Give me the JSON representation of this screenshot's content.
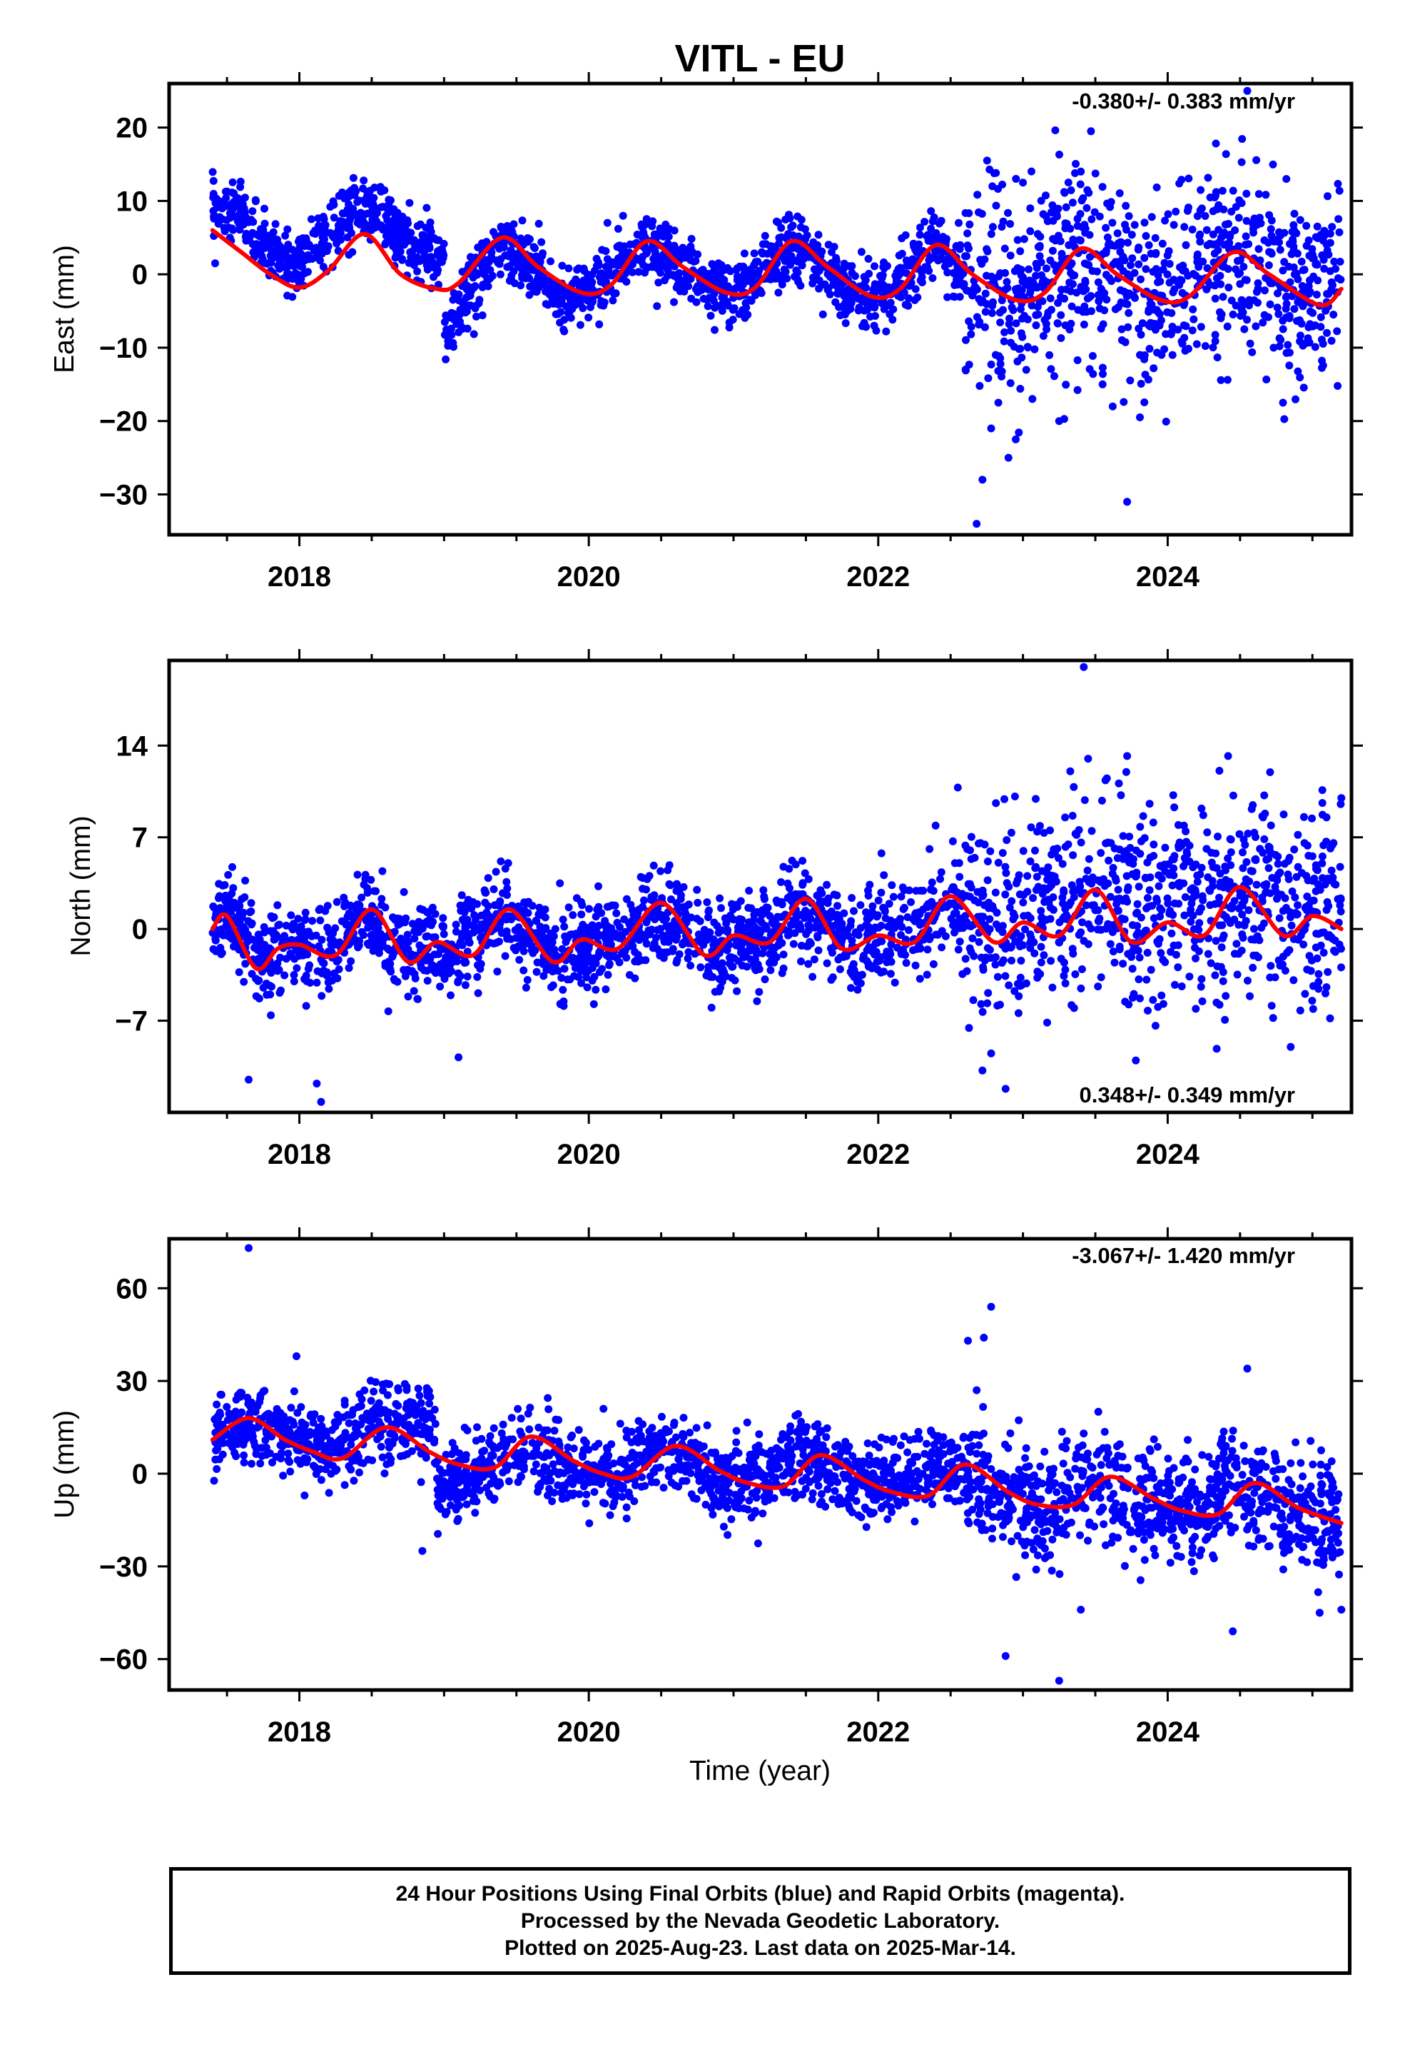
{
  "title": "VITL - EU",
  "xlabel": "Time (year)",
  "footer": {
    "line1": "24 Hour Positions Using Final Orbits (blue) and Rapid Orbits (magenta).",
    "line2": "Processed by the Nevada Geodetic Laboratory.",
    "line3": "Plotted on 2025-Aug-23. Last data on 2025-Mar-14."
  },
  "colors": {
    "points": "#0000ff",
    "fit": "#ff0000",
    "frame": "#000000"
  },
  "chart_data": [
    {
      "type": "scatter",
      "component": "east",
      "ylabel": "East (mm)",
      "rate_text": "-0.380+/- 0.383 mm/yr",
      "rate_position": "top-right",
      "xlim": [
        2017.1,
        2025.27
      ],
      "ylim": [
        -35.5,
        26
      ],
      "yticks": [
        20,
        10,
        0,
        -10,
        -20,
        -30
      ],
      "ytick_labels": [
        "20",
        "10",
        "0",
        "−10",
        "−20",
        "−30"
      ],
      "xticks": [
        2018,
        2020,
        2022,
        2024
      ],
      "xtick_labels": [
        "2018",
        "2020",
        "2022",
        "2024"
      ],
      "x_minor_step": 0.5,
      "grid": false,
      "segments": [
        {
          "x": [
            2017.4,
            2017.6,
            2017.8,
            2018.0,
            2018.2,
            2018.4,
            2018.6,
            2018.8,
            2019.0
          ],
          "y": [
            8.5,
            8.0,
            2.5,
            1.5,
            5.5,
            9.5,
            7.0,
            3.5,
            3.0
          ]
        },
        {
          "x": [
            2019.0,
            2019.2,
            2019.4,
            2019.6,
            2019.8,
            2020.0,
            2020.2,
            2020.4,
            2020.6,
            2020.8,
            2021.0,
            2021.2,
            2021.4,
            2021.6,
            2021.8,
            2022.0,
            2022.2,
            2022.4,
            2022.6,
            2022.8,
            2023.0,
            2023.2,
            2023.4,
            2023.6,
            2023.8,
            2024.0,
            2024.2,
            2024.4,
            2024.6,
            2024.8,
            2025.0,
            2025.2
          ],
          "y": [
            -8.0,
            -1.0,
            4.0,
            1.5,
            -3.5,
            -2.5,
            1.5,
            4.0,
            1.5,
            -2.0,
            -3.0,
            0.5,
            3.5,
            1.5,
            -2.5,
            -3.0,
            0.0,
            4.0,
            -1.0,
            -2.5,
            -2.5,
            1.0,
            3.0,
            0.5,
            -4.0,
            -3.0,
            0.5,
            3.0,
            0.5,
            -2.5,
            -2.5,
            -1.5
          ]
        }
      ],
      "noise_early": [
        2.0,
        2.2
      ],
      "noise_late": [
        2.5,
        6.5
      ],
      "late_start": 2022.6,
      "outliers": {
        "x": [
          2022.68,
          2022.72,
          2022.78,
          2022.83,
          2022.9,
          2023.0,
          2023.25,
          2023.4,
          2023.47,
          2023.55,
          2023.62,
          2023.72,
          2024.55,
          2022.95,
          2023.05,
          2024.82
        ],
        "y": [
          -34.0,
          -28.0,
          -21.0,
          -17.5,
          -25.0,
          12.5,
          -20.0,
          14.0,
          19.5,
          -15.0,
          -18.0,
          -31.0,
          25.0,
          -22.5,
          9.0,
          13.0
        ]
      },
      "fit": {
        "x": [
          2017.4,
          2017.6,
          2017.8,
          2018.0,
          2018.2,
          2018.45,
          2018.7,
          2018.95,
          2019.1,
          2019.4,
          2019.65,
          2019.95,
          2020.15,
          2020.4,
          2020.65,
          2020.95,
          2021.15,
          2021.4,
          2021.65,
          2021.95,
          2022.15,
          2022.4,
          2022.65,
          2022.95,
          2023.15,
          2023.4,
          2023.65,
          2023.95,
          2024.15,
          2024.45,
          2024.7,
          2025.05,
          2025.2
        ],
        "y": [
          6.0,
          3.0,
          0.0,
          -1.8,
          0.5,
          5.5,
          0.0,
          -2.0,
          -1.2,
          5.0,
          1.0,
          -2.5,
          -1.5,
          4.5,
          1.0,
          -2.5,
          -1.8,
          4.5,
          1.0,
          -3.0,
          -2.0,
          4.0,
          0.0,
          -3.5,
          -2.5,
          3.5,
          0.0,
          -3.5,
          -3.0,
          3.0,
          0.0,
          -4.2,
          -2.0
        ]
      }
    },
    {
      "type": "scatter",
      "component": "north",
      "ylabel": "North (mm)",
      "rate_text": "0.348+/- 0.349 mm/yr",
      "rate_position": "bottom-right",
      "xlim": [
        2017.1,
        2025.27
      ],
      "ylim": [
        -14,
        20.5
      ],
      "yticks": [
        14,
        7,
        0,
        -7
      ],
      "ytick_labels": [
        "14",
        "7",
        "0",
        "−7"
      ],
      "xticks": [
        2018,
        2020,
        2022,
        2024
      ],
      "xtick_labels": [
        "2018",
        "2020",
        "2022",
        "2024"
      ],
      "x_minor_step": 0.5,
      "grid": false,
      "segments": [
        {
          "x": [
            2017.4,
            2017.55,
            2017.75,
            2017.95,
            2018.2,
            2018.45,
            2018.65,
            2018.85,
            2019.05,
            2019.25,
            2019.45,
            2019.65,
            2019.85,
            2020.05,
            2020.25,
            2020.45,
            2020.65,
            2020.85,
            2021.05,
            2021.25,
            2021.45,
            2021.65,
            2021.85,
            2022.05,
            2022.25,
            2022.5,
            2022.7,
            2022.9,
            2023.1,
            2023.3,
            2023.5,
            2023.7,
            2023.9,
            2024.1,
            2024.3,
            2024.5,
            2024.7,
            2024.9,
            2025.1,
            2025.2
          ],
          "y": [
            0.5,
            1.0,
            -2.5,
            -1.5,
            -2.0,
            1.5,
            -1.5,
            -1.0,
            -2.0,
            0.0,
            1.5,
            -1.0,
            -2.5,
            -1.0,
            -1.5,
            1.5,
            -0.5,
            -2.0,
            -0.5,
            -1.0,
            2.0,
            0.0,
            -2.0,
            0.0,
            0.0,
            2.5,
            0.5,
            0.0,
            1.5,
            2.0,
            3.0,
            1.5,
            1.5,
            2.5,
            2.5,
            3.0,
            2.0,
            2.0,
            2.0,
            1.5
          ]
        }
      ],
      "noise_early": [
        1.7,
        1.7
      ],
      "noise_late": [
        1.7,
        3.8
      ],
      "late_start": 2022.6,
      "outliers": {
        "x": [
          2017.65,
          2018.12,
          2018.15,
          2019.1,
          2022.72,
          2022.78,
          2022.88,
          2023.42,
          2023.72,
          2023.45,
          2024.85,
          2025.2,
          2023.58,
          2022.55
        ],
        "y": [
          -11.5,
          -11.8,
          -13.2,
          -9.8,
          -10.8,
          -9.5,
          -12.2,
          20.0,
          13.2,
          13.0,
          -9.0,
          10.0,
          11.5,
          10.8
        ]
      },
      "fit": {
        "x": [
          2017.4,
          2017.5,
          2017.7,
          2017.85,
          2018.0,
          2018.25,
          2018.5,
          2018.75,
          2018.95,
          2019.2,
          2019.45,
          2019.75,
          2019.95,
          2020.2,
          2020.5,
          2020.8,
          2021.0,
          2021.25,
          2021.5,
          2021.75,
          2022.0,
          2022.25,
          2022.5,
          2022.8,
          2023.0,
          2023.25,
          2023.5,
          2023.75,
          2024.0,
          2024.25,
          2024.5,
          2024.8,
          2025.0,
          2025.2
        ],
        "y": [
          0.0,
          1.0,
          -3.0,
          -1.5,
          -1.2,
          -2.0,
          1.5,
          -2.5,
          -1.0,
          -2.0,
          1.5,
          -2.5,
          -0.8,
          -1.5,
          2.0,
          -2.0,
          -0.5,
          -1.0,
          2.3,
          -1.5,
          -0.5,
          -1.0,
          2.5,
          -1.0,
          0.5,
          -0.5,
          3.0,
          -1.0,
          0.5,
          -0.5,
          3.2,
          -0.5,
          1.0,
          0.0
        ]
      }
    },
    {
      "type": "scatter",
      "component": "up",
      "ylabel": "Up (mm)",
      "rate_text": "-3.067+/- 1.420 mm/yr",
      "rate_position": "top-right",
      "xlim": [
        2017.1,
        2025.27
      ],
      "ylim": [
        -70,
        76
      ],
      "yticks": [
        60,
        30,
        0,
        -30,
        -60
      ],
      "ytick_labels": [
        "60",
        "30",
        "0",
        "−30",
        "−60"
      ],
      "xticks": [
        2018,
        2020,
        2022,
        2024
      ],
      "xtick_labels": [
        "2018",
        "2020",
        "2022",
        "2024"
      ],
      "x_minor_step": 0.5,
      "grid": false,
      "segments": [
        {
          "x": [
            2017.4,
            2017.6,
            2017.8,
            2018.0,
            2018.2,
            2018.4,
            2018.6,
            2018.8,
            2018.95
          ],
          "y": [
            13.0,
            17.0,
            14.0,
            9.0,
            8.0,
            13.0,
            18.0,
            15.0,
            14.0
          ]
        },
        {
          "x": [
            2018.95,
            2019.2,
            2019.4,
            2019.6,
            2019.8,
            2020.0,
            2020.2,
            2020.4,
            2020.6,
            2020.8,
            2021.0,
            2021.2,
            2021.4,
            2021.6,
            2021.8,
            2022.0,
            2022.2,
            2022.4,
            2022.6,
            2022.8,
            2023.0,
            2023.2,
            2023.4,
            2023.6,
            2023.8,
            2024.0,
            2024.2,
            2024.4,
            2024.6,
            2024.8,
            2025.0,
            2025.2
          ],
          "y": [
            -6.0,
            -2.0,
            5.0,
            7.0,
            3.0,
            -1.0,
            0.0,
            8.0,
            6.0,
            1.0,
            -3.0,
            -2.0,
            5.0,
            3.0,
            -2.0,
            -4.0,
            -3.0,
            3.0,
            0.0,
            -6.0,
            -9.0,
            -10.0,
            -3.0,
            -4.0,
            -10.0,
            -10.0,
            -11.0,
            -2.0,
            -5.0,
            -12.0,
            -13.0,
            -14.0
          ]
        }
      ],
      "noise_early": [
        6.0,
        6.0
      ],
      "noise_late": [
        6.0,
        9.0
      ],
      "late_start": 2022.6,
      "outliers": {
        "x": [
          2017.65,
          2017.98,
          2022.62,
          2022.73,
          2022.78,
          2022.88,
          2023.25,
          2023.4,
          2024.45,
          2024.55,
          2025.2,
          2025.05,
          2018.85,
          2022.68
        ],
        "y": [
          73.0,
          38.0,
          43.0,
          44.0,
          54.0,
          -59.0,
          -67.0,
          -44.0,
          -51.0,
          34.0,
          -44.0,
          -45.0,
          -25.0,
          27.0
        ]
      },
      "fit": {
        "x": [
          2017.4,
          2017.65,
          2017.9,
          2018.1,
          2018.3,
          2018.6,
          2018.9,
          2019.1,
          2019.35,
          2019.6,
          2019.9,
          2020.1,
          2020.3,
          2020.6,
          2020.9,
          2021.1,
          2021.35,
          2021.6,
          2021.9,
          2022.1,
          2022.35,
          2022.6,
          2022.9,
          2023.1,
          2023.35,
          2023.6,
          2023.9,
          2024.1,
          2024.35,
          2024.6,
          2024.9,
          2025.2
        ],
        "y": [
          11.0,
          18.0,
          11.0,
          7.0,
          5.0,
          15.0,
          7.0,
          3.0,
          2.0,
          12.0,
          4.0,
          0.0,
          -1.0,
          9.0,
          1.0,
          -3.0,
          -4.0,
          6.0,
          -2.0,
          -6.0,
          -7.0,
          3.0,
          -6.0,
          -10.0,
          -10.0,
          -1.0,
          -8.0,
          -12.0,
          -13.0,
          -3.0,
          -11.0,
          -16.0
        ]
      }
    }
  ]
}
